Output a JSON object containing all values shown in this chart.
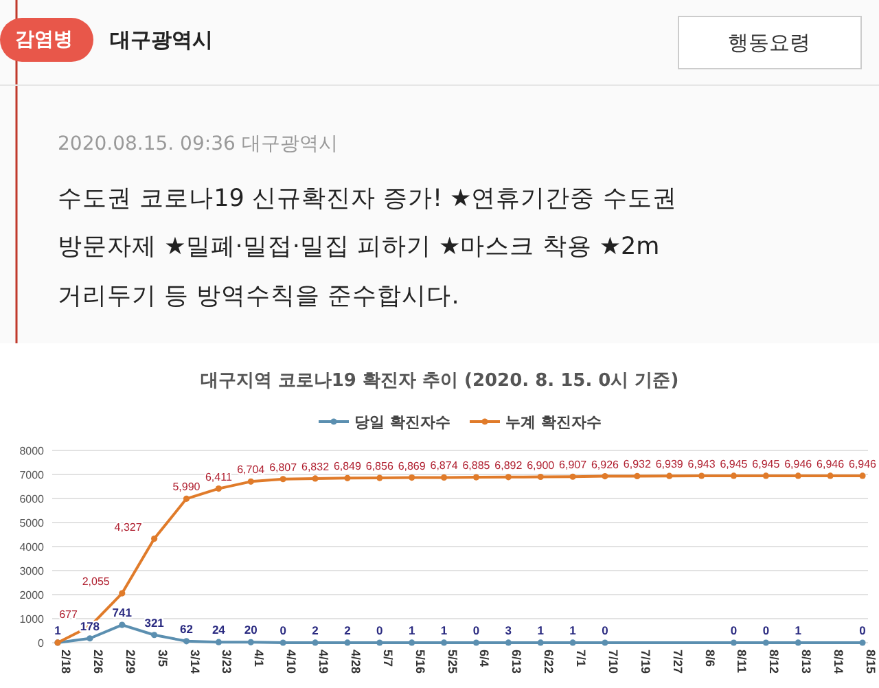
{
  "chart_data": {
    "type": "line",
    "title": "대구지역 코로나19  확진자 추이 (2020. 8. 15. 0시 기준)",
    "annotations": [
      "감염병",
      "대구광역시",
      "행동요령",
      "2020.08.15. 09:36 대구광역시",
      "수도권 코로나19 신규확진자 증가! ★연휴기간중 수도권",
      "방문자제 ★밀폐·밀접·밀집 피하기 ★마스크 착용 ★2m",
      "거리두기 등 방역수칙을 준수합시다."
    ],
    "categories": [
      "2/18",
      "2/26",
      "2/29",
      "3/5",
      "3/14",
      "3/23",
      "4/1",
      "4/10",
      "4/19",
      "4/28",
      "5/7",
      "5/16",
      "5/25",
      "6/4",
      "6/13",
      "6/22",
      "7/1",
      "7/10",
      "7/19",
      "7/27",
      "8/6",
      "8/11",
      "8/12",
      "8/13",
      "8/14",
      "8/15"
    ],
    "series": [
      {
        "name": "당일 확진자수",
        "color": "#5b8fb0",
        "values": [
          1,
          178,
          741,
          321,
          62,
          24,
          20,
          0,
          2,
          2,
          0,
          1,
          1,
          0,
          3,
          1,
          1,
          0,
          null,
          null,
          null,
          0,
          0,
          1,
          null,
          0
        ],
        "value_labels": [
          "1",
          "178",
          "741",
          "321",
          "62",
          "24",
          "20",
          "0",
          "2",
          "2",
          "0",
          "1",
          "1",
          "0",
          "3",
          "1",
          "1",
          "0",
          null,
          null,
          null,
          "0",
          "0",
          "1",
          null,
          "0"
        ]
      },
      {
        "name": "누계 확진자수",
        "color": "#e07b2a",
        "values": [
          1,
          677,
          2055,
          4327,
          5990,
          6411,
          6704,
          6807,
          6832,
          6849,
          6856,
          6869,
          6874,
          6885,
          6892,
          6900,
          6907,
          6926,
          6932,
          6939,
          6943,
          6945,
          6945,
          6946,
          6946,
          6946
        ],
        "value_labels": [
          null,
          "677",
          "2,055",
          "4,327",
          "5,990",
          "6,411",
          "6,704",
          "6,807",
          "6,832",
          "6,849",
          "6,856",
          "6,869",
          "6,874",
          "6,885",
          "6,892",
          "6,900",
          "6,907",
          "6,926",
          "6,932",
          "6,939",
          "6,943",
          "6,945",
          "6,945",
          "6,946",
          "6,946",
          "6,946"
        ]
      }
    ],
    "ylim": [
      0,
      8000
    ],
    "yticks": [
      0,
      1000,
      2000,
      3000,
      4000,
      5000,
      6000,
      7000,
      8000
    ],
    "grid": "y",
    "legend": "top",
    "marker": "circle"
  }
}
